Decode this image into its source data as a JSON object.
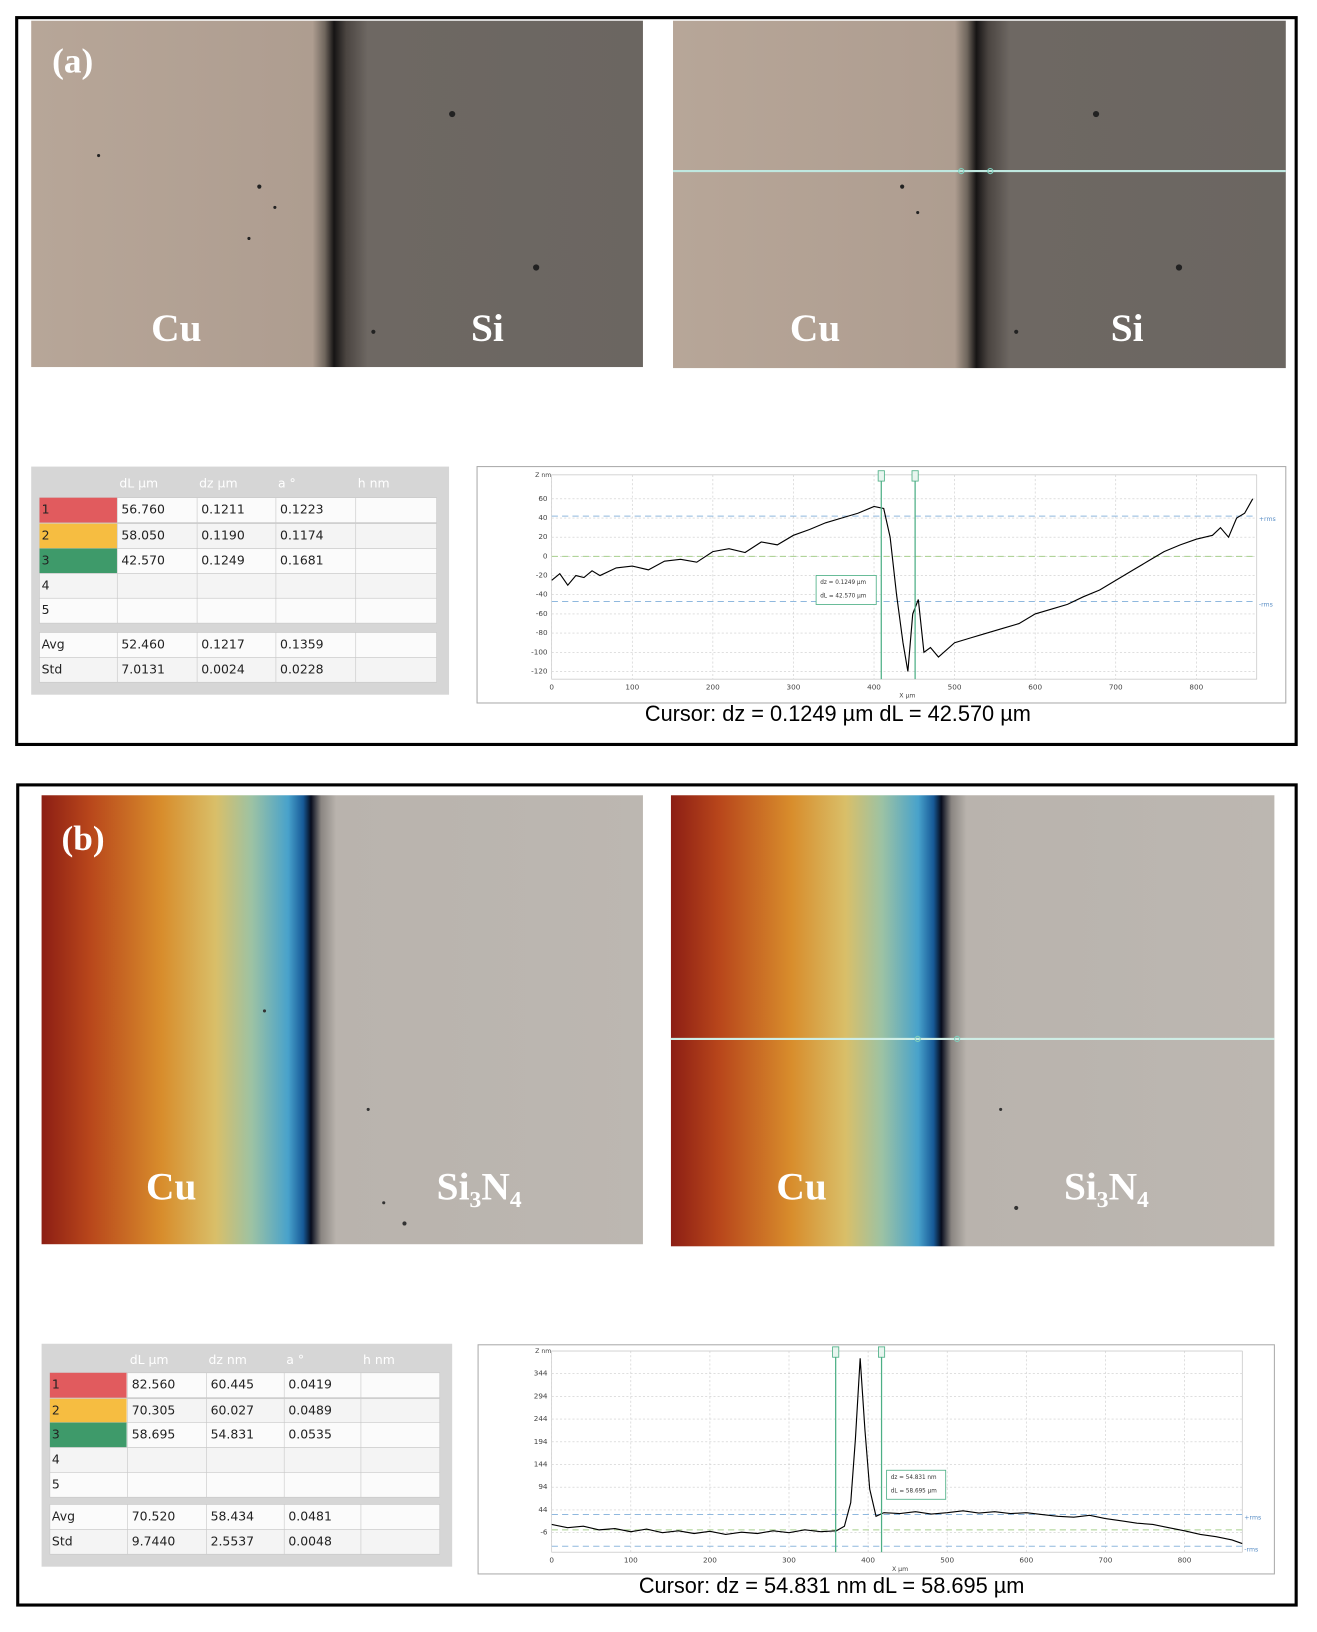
{
  "panels": [
    {
      "label": "(a)",
      "image_labels": [
        [
          "Cu",
          "Si"
        ],
        [
          "Cu",
          "Si"
        ]
      ],
      "table": {
        "header": [
          "dL µm",
          "dz µm",
          "a °",
          "h nm"
        ],
        "rows": [
          [
            "1",
            "56.760",
            "0.1211",
            "0.1223"
          ],
          [
            "2",
            "58.050",
            "0.1190",
            "0.1174"
          ],
          [
            "3",
            "42.570",
            "0.1249",
            "0.1681"
          ],
          [
            "4"
          ],
          [
            "5"
          ]
        ],
        "summary": [
          [
            "Avg",
            "52.460",
            "0.1217",
            "0.1359"
          ],
          [
            "Std",
            "7.0131",
            "0.0024",
            "0.0228"
          ]
        ]
      },
      "profile": {
        "type": "line",
        "y_label": "Z nm",
        "x_label": "X µm",
        "color": "#000000",
        "grid": true,
        "xlim": [
          0,
          875
        ],
        "xticks": [
          0,
          100,
          200,
          300,
          400,
          500,
          600,
          700,
          800
        ],
        "ylim": [
          -128,
          85
        ],
        "yticks": [
          60,
          40,
          20,
          0,
          -20,
          -40,
          -60,
          -80,
          -100,
          -120
        ],
        "x": [
          0,
          10,
          20,
          30,
          40,
          50,
          60,
          80,
          100,
          120,
          140,
          160,
          180,
          200,
          220,
          240,
          260,
          280,
          300,
          320,
          340,
          360,
          380,
          400,
          412,
          420,
          428,
          436,
          442,
          448,
          455,
          462,
          470,
          480,
          500,
          520,
          540,
          560,
          580,
          600,
          620,
          640,
          660,
          680,
          700,
          720,
          740,
          760,
          780,
          800,
          820,
          830,
          840,
          850,
          860,
          870
        ],
        "values": [
          -25,
          -18,
          -30,
          -20,
          -22,
          -15,
          -20,
          -12,
          -10,
          -14,
          -5,
          -3,
          -6,
          5,
          8,
          4,
          15,
          12,
          22,
          28,
          35,
          40,
          45,
          52,
          50,
          20,
          -40,
          -90,
          -120,
          -60,
          -45,
          -100,
          -95,
          -105,
          -90,
          -85,
          -80,
          -75,
          -70,
          -60,
          -55,
          -50,
          -42,
          -35,
          -25,
          -15,
          -5,
          5,
          12,
          18,
          22,
          30,
          20,
          40,
          45,
          60
        ],
        "cursors": [
          409,
          451
        ],
        "cursor_box": [
          "dz = 0.1249 µm",
          "dL = 42.570 µm"
        ],
        "rms": [
          {
            "value": 42,
            "label": "+rms"
          },
          {
            "value": -47,
            "label": "-rms"
          }
        ],
        "mean": 0
      },
      "caption": "Cursor: dz = 0.1249 µm  dL = 42.570 µm"
    },
    {
      "label": "(b)",
      "image_labels": [
        [
          "Cu",
          "Si₃N₄"
        ],
        [
          "Cu",
          "Si₃N₄"
        ]
      ],
      "table": {
        "header": [
          "dL µm",
          "dz nm",
          "a °",
          "h nm"
        ],
        "rows": [
          [
            "1",
            "82.560",
            "60.445",
            "0.0419"
          ],
          [
            "2",
            "70.305",
            "60.027",
            "0.0489"
          ],
          [
            "3",
            "58.695",
            "54.831",
            "0.0535"
          ],
          [
            "4"
          ],
          [
            "5"
          ]
        ],
        "summary": [
          [
            "Avg",
            "70.520",
            "58.434",
            "0.0481"
          ],
          [
            "Std",
            "9.7440",
            "2.5537",
            "0.0048"
          ]
        ]
      },
      "profile": {
        "type": "line",
        "y_label": "Z nm",
        "x_label": "X µm",
        "color": "#000000",
        "grid": true,
        "xlim": [
          0,
          873
        ],
        "xticks": [
          0,
          100,
          200,
          300,
          400,
          500,
          600,
          700,
          800
        ],
        "ylim": [
          -49,
          394
        ],
        "yticks": [
          344,
          294,
          244,
          194,
          144,
          94,
          44,
          -6
        ],
        "x": [
          0,
          20,
          40,
          60,
          80,
          100,
          120,
          140,
          160,
          180,
          200,
          220,
          240,
          260,
          280,
          300,
          320,
          340,
          360,
          370,
          378,
          384,
          390,
          396,
          402,
          410,
          420,
          440,
          460,
          480,
          500,
          520,
          540,
          560,
          580,
          600,
          620,
          640,
          660,
          680,
          700,
          720,
          740,
          760,
          780,
          800,
          820,
          840,
          860,
          873
        ],
        "values": [
          12,
          5,
          8,
          0,
          3,
          -4,
          2,
          -6,
          -2,
          -8,
          -3,
          -10,
          -5,
          -8,
          -2,
          -6,
          0,
          -4,
          -2,
          8,
          60,
          200,
          378,
          220,
          90,
          30,
          38,
          36,
          40,
          35,
          38,
          42,
          37,
          40,
          36,
          38,
          34,
          30,
          28,
          32,
          25,
          20,
          15,
          12,
          5,
          -2,
          -10,
          -15,
          -22,
          -30
        ],
        "cursors": [
          359,
          417
        ],
        "cursor_box": [
          "dz = 54.831 nm",
          "dL = 58.695 µm"
        ],
        "rms": [
          {
            "value": 34,
            "label": "+rms"
          },
          {
            "value": -36,
            "label": "-rms"
          }
        ],
        "mean": 0
      },
      "caption": "Cursor: dz = 54.831 nm  dL = 58.695 µm"
    }
  ]
}
